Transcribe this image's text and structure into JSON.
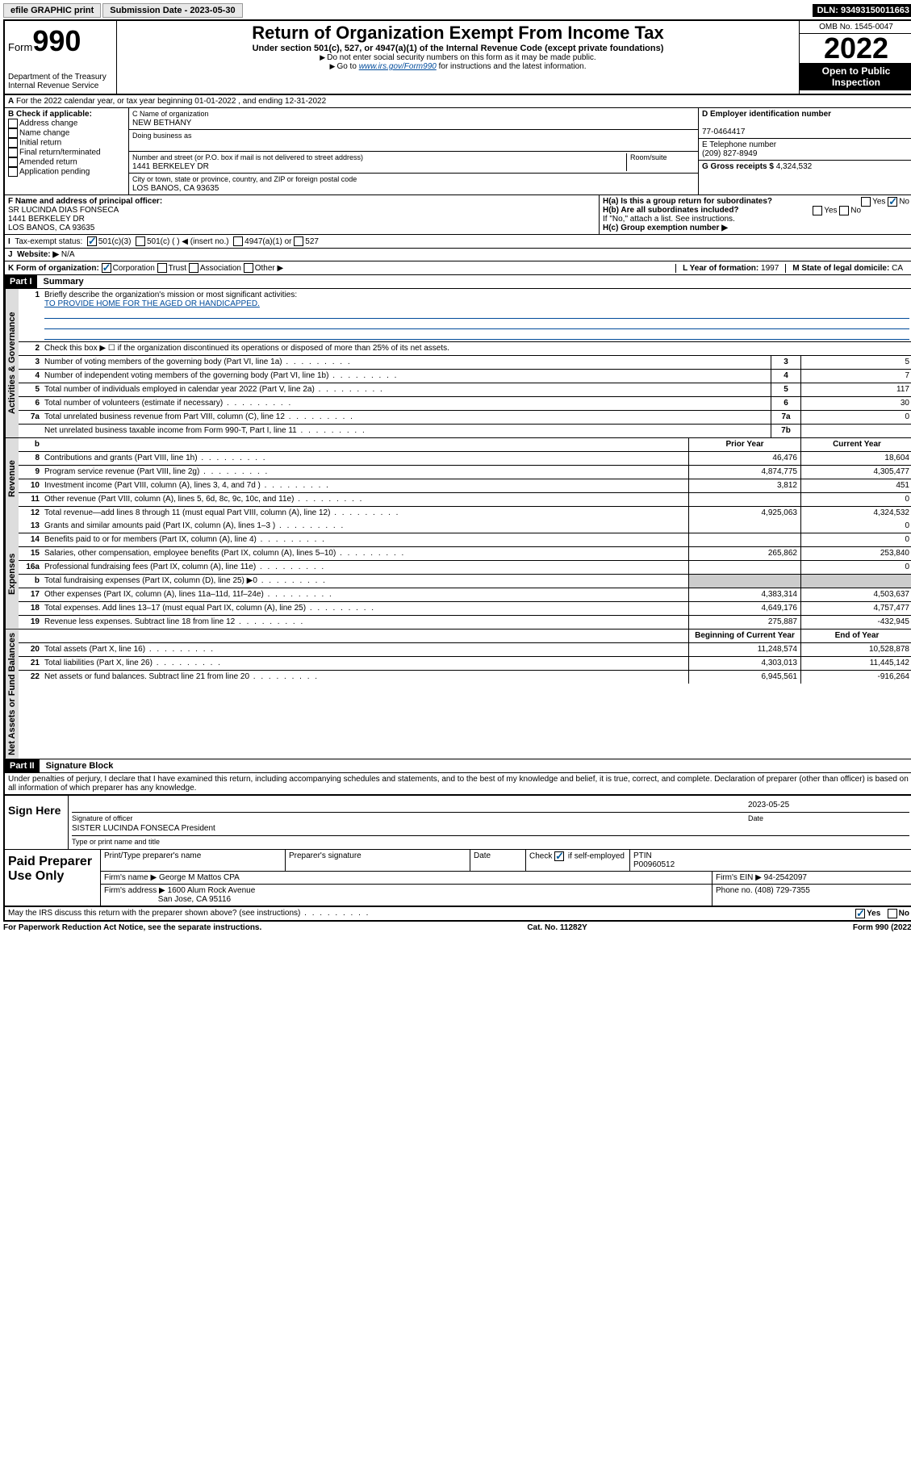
{
  "topbar": {
    "efile": "efile GRAPHIC print",
    "subdate_label": "Submission Date - 2023-05-30",
    "dln": "DLN: 93493150011663"
  },
  "header": {
    "form_label": "Form",
    "form_num": "990",
    "dept": "Department of the Treasury",
    "irs": "Internal Revenue Service",
    "title": "Return of Organization Exempt From Income Tax",
    "sub": "Under section 501(c), 527, or 4947(a)(1) of the Internal Revenue Code (except private foundations)",
    "note1": "Do not enter social security numbers on this form as it may be made public.",
    "note2_pre": "Go to ",
    "note2_link": "www.irs.gov/Form990",
    "note2_post": " for instructions and the latest information.",
    "omb": "OMB No. 1545-0047",
    "year": "2022",
    "open": "Open to Public Inspection"
  },
  "line_a": "For the 2022 calendar year, or tax year beginning 01-01-2022   , and ending 12-31-2022",
  "box_b": {
    "title": "B Check if applicable:",
    "opts": [
      "Address change",
      "Name change",
      "Initial return",
      "Final return/terminated",
      "Amended return",
      "Application pending"
    ]
  },
  "box_c": {
    "label": "C Name of organization",
    "name": "NEW BETHANY",
    "dba_label": "Doing business as",
    "addr_label": "Number and street (or P.O. box if mail is not delivered to street address)",
    "room_label": "Room/suite",
    "addr": "1441 BERKELEY DR",
    "city_label": "City or town, state or province, country, and ZIP or foreign postal code",
    "city": "LOS BANOS, CA  93635"
  },
  "box_d": {
    "label": "D Employer identification number",
    "val": "77-0464417"
  },
  "box_e": {
    "label": "E Telephone number",
    "val": "(209) 827-8949"
  },
  "box_g": {
    "label": "G Gross receipts $",
    "val": "4,324,532"
  },
  "box_f": {
    "label": "F Name and address of principal officer:",
    "name": "SR LUCINDA DIAS FONSECA",
    "addr1": "1441 BERKELEY DR",
    "addr2": "LOS BANOS, CA  93635"
  },
  "box_h": {
    "ha": "H(a)  Is this a group return for subordinates?",
    "hb": "H(b)  Are all subordinates included?",
    "hb_note": "If \"No,\" attach a list. See instructions.",
    "hc": "H(c)  Group exemption number ▶",
    "yes": "Yes",
    "no": "No"
  },
  "box_i": {
    "label": "Tax-exempt status:",
    "o1": "501(c)(3)",
    "o2": "501(c) (   ) ◀ (insert no.)",
    "o3": "4947(a)(1) or",
    "o4": "527"
  },
  "box_j": {
    "label": "Website: ▶",
    "val": "N/A"
  },
  "box_k": {
    "label": "K Form of organization:",
    "o1": "Corporation",
    "o2": "Trust",
    "o3": "Association",
    "o4": "Other ▶"
  },
  "box_l": {
    "label": "L Year of formation:",
    "val": "1997"
  },
  "box_m": {
    "label": "M State of legal domicile:",
    "val": "CA"
  },
  "part1": {
    "header": "Part I",
    "title": "Summary",
    "q1": "Briefly describe the organization's mission or most significant activities:",
    "q1_ans": "TO PROVIDE HOME FOR THE AGED OR HANDICAPPED.",
    "q2": "Check this box ▶ ☐  if the organization discontinued its operations or disposed of more than 25% of its net assets."
  },
  "tabs": {
    "gov": "Activities & Governance",
    "rev": "Revenue",
    "exp": "Expenses",
    "net": "Net Assets or Fund Balances"
  },
  "gov_rows": [
    {
      "n": "3",
      "label": "Number of voting members of the governing body (Part VI, line 1a)",
      "ln": "3",
      "val": "5"
    },
    {
      "n": "4",
      "label": "Number of independent voting members of the governing body (Part VI, line 1b)",
      "ln": "4",
      "val": "7"
    },
    {
      "n": "5",
      "label": "Total number of individuals employed in calendar year 2022 (Part V, line 2a)",
      "ln": "5",
      "val": "117"
    },
    {
      "n": "6",
      "label": "Total number of volunteers (estimate if necessary)",
      "ln": "6",
      "val": "30"
    },
    {
      "n": "7a",
      "label": "Total unrelated business revenue from Part VIII, column (C), line 12",
      "ln": "7a",
      "val": "0"
    },
    {
      "n": "",
      "label": "Net unrelated business taxable income from Form 990-T, Part I, line 11",
      "ln": "7b",
      "val": ""
    }
  ],
  "col_headers": {
    "b": "b",
    "prior": "Prior Year",
    "current": "Current Year"
  },
  "rev_rows": [
    {
      "n": "8",
      "label": "Contributions and grants (Part VIII, line 1h)",
      "p": "46,476",
      "c": "18,604"
    },
    {
      "n": "9",
      "label": "Program service revenue (Part VIII, line 2g)",
      "p": "4,874,775",
      "c": "4,305,477"
    },
    {
      "n": "10",
      "label": "Investment income (Part VIII, column (A), lines 3, 4, and 7d )",
      "p": "3,812",
      "c": "451"
    },
    {
      "n": "11",
      "label": "Other revenue (Part VIII, column (A), lines 5, 6d, 8c, 9c, 10c, and 11e)",
      "p": "",
      "c": "0"
    },
    {
      "n": "12",
      "label": "Total revenue—add lines 8 through 11 (must equal Part VIII, column (A), line 12)",
      "p": "4,925,063",
      "c": "4,324,532"
    }
  ],
  "exp_rows": [
    {
      "n": "13",
      "label": "Grants and similar amounts paid (Part IX, column (A), lines 1–3 )",
      "p": "",
      "c": "0"
    },
    {
      "n": "14",
      "label": "Benefits paid to or for members (Part IX, column (A), line 4)",
      "p": "",
      "c": "0"
    },
    {
      "n": "15",
      "label": "Salaries, other compensation, employee benefits (Part IX, column (A), lines 5–10)",
      "p": "265,862",
      "c": "253,840"
    },
    {
      "n": "16a",
      "label": "Professional fundraising fees (Part IX, column (A), line 11e)",
      "p": "",
      "c": "0"
    },
    {
      "n": "b",
      "label": "Total fundraising expenses (Part IX, column (D), line 25) ▶0",
      "p": "grey",
      "c": "grey"
    },
    {
      "n": "17",
      "label": "Other expenses (Part IX, column (A), lines 11a–11d, 11f–24e)",
      "p": "4,383,314",
      "c": "4,503,637"
    },
    {
      "n": "18",
      "label": "Total expenses. Add lines 13–17 (must equal Part IX, column (A), line 25)",
      "p": "4,649,176",
      "c": "4,757,477"
    },
    {
      "n": "19",
      "label": "Revenue less expenses. Subtract line 18 from line 12",
      "p": "275,887",
      "c": "-432,945"
    }
  ],
  "net_headers": {
    "begin": "Beginning of Current Year",
    "end": "End of Year"
  },
  "net_rows": [
    {
      "n": "20",
      "label": "Total assets (Part X, line 16)",
      "p": "11,248,574",
      "c": "10,528,878"
    },
    {
      "n": "21",
      "label": "Total liabilities (Part X, line 26)",
      "p": "4,303,013",
      "c": "11,445,142"
    },
    {
      "n": "22",
      "label": "Net assets or fund balances. Subtract line 21 from line 20",
      "p": "6,945,561",
      "c": "-916,264"
    }
  ],
  "part2": {
    "header": "Part II",
    "title": "Signature Block",
    "decl": "Under penalties of perjury, I declare that I have examined this return, including accompanying schedules and statements, and to the best of my knowledge and belief, it is true, correct, and complete. Declaration of preparer (other than officer) is based on all information of which preparer has any knowledge."
  },
  "sign": {
    "here": "Sign Here",
    "sig_label": "Signature of officer",
    "date_label": "Date",
    "date": "2023-05-25",
    "name": "SISTER LUCINDA FONSECA  President",
    "name_label": "Type or print name and title"
  },
  "paid": {
    "title": "Paid Preparer Use Only",
    "h1": "Print/Type preparer's name",
    "h2": "Preparer's signature",
    "h3": "Date",
    "h4_pre": "Check",
    "h4_post": "if self-employed",
    "h5": "PTIN",
    "ptin": "P00960512",
    "firm_name_label": "Firm's name    ▶",
    "firm_name": "George M Mattos CPA",
    "firm_ein_label": "Firm's EIN ▶",
    "firm_ein": "94-2542097",
    "firm_addr_label": "Firm's address ▶",
    "firm_addr1": "1600 Alum Rock Avenue",
    "firm_addr2": "San Jose, CA  95116",
    "phone_label": "Phone no.",
    "phone": "(408) 729-7355"
  },
  "discuss": {
    "q": "May the IRS discuss this return with the preparer shown above? (see instructions)",
    "yes": "Yes",
    "no": "No"
  },
  "footer": {
    "left": "For Paperwork Reduction Act Notice, see the separate instructions.",
    "mid": "Cat. No. 11282Y",
    "right": "Form 990 (2022)"
  }
}
